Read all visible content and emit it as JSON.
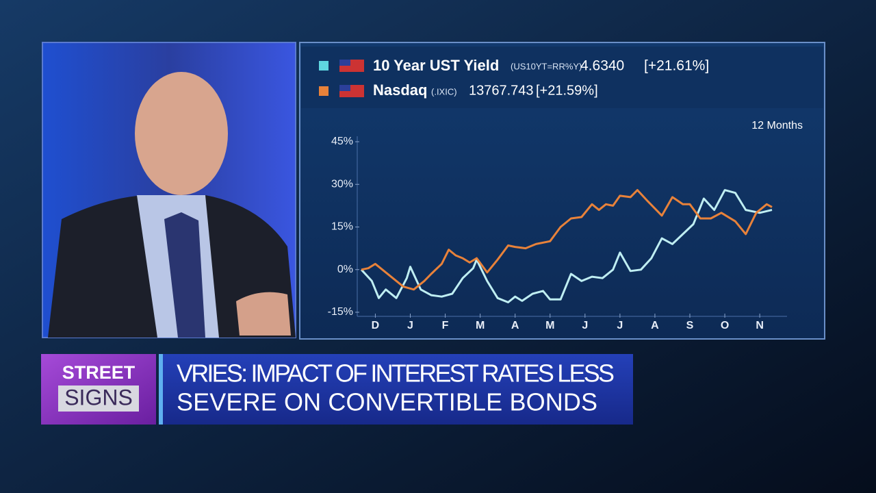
{
  "chart_data": {
    "type": "line",
    "period_label": "12 Months",
    "legend": [
      {
        "name": "10 Year UST Yield",
        "ric": "(US10YT=RR%Y)",
        "price": "4.6340",
        "change": "[+21.61%]"
      },
      {
        "name": "Nasdaq",
        "ric": "(.IXIC)",
        "price": "13767.743",
        "change": "[+21.59%]"
      }
    ],
    "series": [
      {
        "name": "10 Year UST Yield",
        "color": "#bfeef2",
        "x": [
          0.6,
          0.9,
          1.1,
          1.3,
          1.6,
          1.9,
          2.0,
          2.3,
          2.6,
          2.9,
          3.2,
          3.5,
          3.8,
          3.9,
          4.2,
          4.5,
          4.8,
          5.0,
          5.2,
          5.5,
          5.8,
          6.0,
          6.3,
          6.6,
          6.9,
          7.2,
          7.5,
          7.8,
          8.0,
          8.3,
          8.6,
          8.9,
          9.2,
          9.5,
          9.8,
          10.1,
          10.4,
          10.7,
          11.0,
          11.3,
          11.6,
          12.0,
          12.35
        ],
        "values": [
          0,
          -4,
          -10,
          -7,
          -10,
          -3,
          1,
          -7,
          -9,
          -9.5,
          -8.5,
          -3,
          0.5,
          3.5,
          -4,
          -10,
          -11.5,
          -9.5,
          -11,
          -8.5,
          -7.5,
          -10.5,
          -10.5,
          -1.5,
          -4,
          -2.5,
          -3,
          0,
          6,
          -0.5,
          0,
          4,
          11,
          9,
          12.5,
          16,
          25,
          21,
          28,
          27,
          21,
          20,
          21
        ]
      },
      {
        "name": "Nasdaq",
        "color": "#e8823a",
        "x": [
          0.6,
          0.8,
          1.0,
          1.4,
          1.8,
          2.1,
          2.4,
          2.6,
          2.9,
          3.1,
          3.3,
          3.5,
          3.7,
          3.9,
          4.2,
          4.5,
          4.8,
          5.0,
          5.3,
          5.6,
          6.0,
          6.3,
          6.6,
          6.9,
          7.2,
          7.4,
          7.6,
          7.8,
          8.0,
          8.3,
          8.5,
          8.8,
          9.2,
          9.5,
          9.8,
          10.0,
          10.3,
          10.6,
          10.9,
          11.3,
          11.6,
          11.9,
          12.2,
          12.35
        ],
        "values": [
          0,
          0.5,
          2,
          -2,
          -6,
          -7,
          -4,
          -1.5,
          2,
          7,
          5,
          4,
          2.5,
          4,
          -1,
          3.5,
          8.5,
          8,
          7.5,
          9,
          10,
          15,
          18,
          18.5,
          23,
          21,
          23,
          22.5,
          26,
          25.5,
          28,
          24,
          19,
          25.5,
          23,
          23,
          18,
          18,
          20,
          17,
          12.5,
          20,
          23,
          22
        ]
      }
    ],
    "xlim": [
      0.6,
      12.35
    ],
    "xticks": [
      {
        "value": 1,
        "label": "D"
      },
      {
        "value": 2,
        "label": "J"
      },
      {
        "value": 3,
        "label": "F"
      },
      {
        "value": 4,
        "label": "M"
      },
      {
        "value": 5,
        "label": "A"
      },
      {
        "value": 6,
        "label": "M"
      },
      {
        "value": 7,
        "label": "J"
      },
      {
        "value": 8,
        "label": "J"
      },
      {
        "value": 9,
        "label": "A"
      },
      {
        "value": 10,
        "label": "S"
      },
      {
        "value": 11,
        "label": "O"
      },
      {
        "value": 12,
        "label": "N"
      }
    ],
    "ylim": [
      -15,
      45
    ],
    "yticks": [
      {
        "value": -15,
        "label": "-15%"
      },
      {
        "value": 0,
        "label": "0%"
      },
      {
        "value": 15,
        "label": "15%"
      },
      {
        "value": 30,
        "label": "30%"
      },
      {
        "value": 45,
        "label": "45%"
      }
    ]
  },
  "banner": {
    "logo_top": "STREET",
    "logo_bottom": "SIGNS",
    "headline": [
      "VRIES: IMPACT OF INTEREST RATES LESS",
      "SEVERE ON CONVERTIBLE BONDS"
    ]
  }
}
